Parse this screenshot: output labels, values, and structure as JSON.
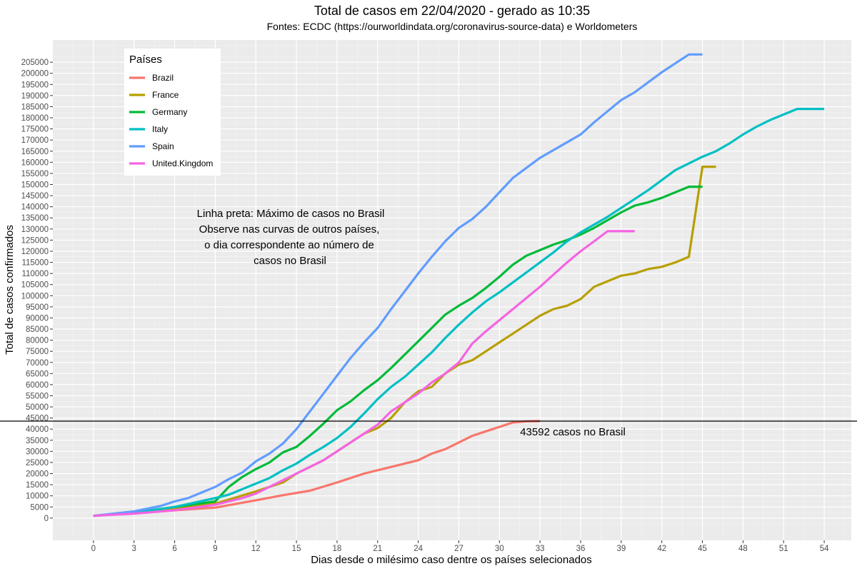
{
  "chart_data": {
    "type": "line",
    "title": "Total de casos em 22/04/2020 - gerado as 10:35",
    "subtitle": "Fontes: ECDC (https://ourworldindata.org/coronavirus-source-data) e Worldometers",
    "xlabel": "Dias desde o milésimo caso dentre os países selecionados",
    "ylabel": "Total de casos confirmados",
    "xlim": [
      -3,
      56
    ],
    "ylim": [
      -10000,
      215000
    ],
    "x_ticks": [
      0,
      3,
      6,
      9,
      12,
      15,
      18,
      21,
      24,
      27,
      30,
      33,
      36,
      39,
      42,
      45,
      48,
      51,
      54
    ],
    "y_ticks": [
      0,
      5000,
      10000,
      15000,
      20000,
      25000,
      30000,
      35000,
      40000,
      45000,
      50000,
      55000,
      60000,
      65000,
      70000,
      75000,
      80000,
      85000,
      90000,
      95000,
      100000,
      105000,
      110000,
      115000,
      120000,
      125000,
      130000,
      135000,
      140000,
      145000,
      150000,
      155000,
      160000,
      165000,
      170000,
      175000,
      180000,
      185000,
      190000,
      195000,
      200000,
      205000
    ],
    "grid": true,
    "legend": {
      "title": "Países",
      "position": "top-left"
    },
    "series": [
      {
        "name": "Brazil",
        "color": "#F8766D",
        "x": [
          0,
          3,
          6,
          9,
          12,
          14,
          16,
          18,
          20,
          22,
          24,
          25,
          26,
          27,
          28,
          29,
          30,
          31,
          32,
          33
        ],
        "y": [
          1000,
          2200,
          3500,
          4700,
          8000,
          10300,
          12300,
          16000,
          20000,
          23000,
          26000,
          29000,
          31000,
          34000,
          37000,
          39000,
          41000,
          43000,
          43500,
          43592
        ]
      },
      {
        "name": "France",
        "color": "#B79F00",
        "x": [
          0,
          3,
          6,
          9,
          12,
          14,
          15,
          16,
          17,
          18,
          19,
          20,
          21,
          22,
          23,
          24,
          25,
          26,
          27,
          28,
          29,
          30,
          31,
          32,
          33,
          34,
          35,
          36,
          37,
          38,
          39,
          40,
          41,
          42,
          43,
          44,
          45,
          46
        ],
        "y": [
          1000,
          2500,
          4200,
          6500,
          12000,
          16000,
          20000,
          23000,
          26000,
          30000,
          34000,
          38000,
          40500,
          45000,
          52000,
          57000,
          59000,
          65000,
          69000,
          71000,
          75000,
          79000,
          83000,
          87000,
          91000,
          94000,
          95500,
          98500,
          104000,
          106500,
          109000,
          110000,
          112000,
          113000,
          115000,
          117500,
          158000,
          158000
        ]
      },
      {
        "name": "Germany",
        "color": "#00BA38",
        "x": [
          0,
          3,
          6,
          9,
          10,
          11,
          12,
          13,
          14,
          15,
          16,
          17,
          18,
          19,
          20,
          21,
          22,
          23,
          24,
          25,
          26,
          27,
          28,
          29,
          30,
          31,
          32,
          33,
          34,
          35,
          36,
          37,
          38,
          39,
          40,
          41,
          42,
          43,
          44,
          45
        ],
        "y": [
          1000,
          2500,
          5000,
          7500,
          14000,
          18500,
          22000,
          25000,
          29500,
          32000,
          37000,
          42500,
          48500,
          52500,
          57500,
          62000,
          67500,
          73500,
          79500,
          85500,
          91500,
          95500,
          99000,
          103500,
          108500,
          114000,
          118000,
          120500,
          123000,
          125000,
          127500,
          130500,
          134000,
          137500,
          140500,
          142000,
          144000,
          146500,
          149000,
          149000
        ]
      },
      {
        "name": "Italy",
        "color": "#00BFC4",
        "x": [
          0,
          3,
          6,
          9,
          10,
          11,
          12,
          13,
          14,
          15,
          16,
          17,
          18,
          19,
          20,
          21,
          22,
          23,
          24,
          25,
          26,
          27,
          28,
          29,
          30,
          31,
          32,
          33,
          34,
          35,
          36,
          37,
          38,
          39,
          40,
          41,
          42,
          43,
          44,
          45,
          46,
          47,
          48,
          49,
          50,
          51,
          52,
          53,
          54
        ],
        "y": [
          1000,
          2500,
          5000,
          9000,
          10500,
          13000,
          15500,
          18000,
          21500,
          24500,
          28500,
          32000,
          36000,
          41000,
          47000,
          53500,
          59000,
          63500,
          69000,
          74500,
          81000,
          87000,
          92500,
          97500,
          101500,
          106000,
          110500,
          115000,
          119500,
          124500,
          128500,
          132000,
          135500,
          139500,
          143500,
          147500,
          152000,
          156500,
          159500,
          162500,
          165000,
          168500,
          172500,
          176000,
          179000,
          181500,
          184000,
          184000,
          184000
        ]
      },
      {
        "name": "Spain",
        "color": "#619CFF",
        "x": [
          0,
          3,
          5,
          6,
          7,
          8,
          9,
          10,
          11,
          12,
          13,
          14,
          15,
          16,
          17,
          18,
          19,
          20,
          21,
          22,
          23,
          24,
          25,
          26,
          27,
          28,
          29,
          30,
          31,
          32,
          33,
          34,
          35,
          36,
          37,
          38,
          39,
          40,
          41,
          42,
          43,
          44,
          45
        ],
        "y": [
          1000,
          3000,
          5500,
          7500,
          9000,
          11500,
          14000,
          17500,
          20500,
          25500,
          29000,
          33500,
          40000,
          48000,
          56000,
          64000,
          72000,
          79000,
          85500,
          94000,
          102000,
          110000,
          117500,
          124500,
          130500,
          134500,
          140000,
          146500,
          153000,
          157500,
          162000,
          165500,
          169000,
          172500,
          178000,
          183000,
          188000,
          191500,
          196000,
          200500,
          204500,
          208500,
          208500
        ]
      },
      {
        "name": "United.Kingdom",
        "color": "#F564E3",
        "x": [
          0,
          3,
          6,
          9,
          10,
          11,
          12,
          13,
          14,
          15,
          16,
          17,
          18,
          19,
          20,
          21,
          22,
          23,
          24,
          25,
          26,
          27,
          28,
          29,
          30,
          31,
          32,
          33,
          34,
          35,
          36,
          37,
          38,
          39,
          40
        ],
        "y": [
          1000,
          2000,
          3500,
          6000,
          7500,
          9000,
          11000,
          14000,
          17000,
          20000,
          23000,
          26000,
          30000,
          34000,
          38000,
          42000,
          48000,
          52000,
          56000,
          61000,
          65000,
          70000,
          78500,
          84000,
          89000,
          94000,
          99000,
          104000,
          109500,
          115000,
          120000,
          124500,
          129000,
          129000,
          129000
        ]
      }
    ],
    "hline": {
      "y": 43592,
      "color": "#000000"
    },
    "annotations": [
      {
        "lines": [
          "Linha preta: Máximo de casos no Brasil",
          "Observe nas curvas de outros países,",
          "o dia correspondente ao número de",
          "casos no Brasil"
        ]
      },
      {
        "text": "43592 casos no Brasil"
      }
    ]
  }
}
